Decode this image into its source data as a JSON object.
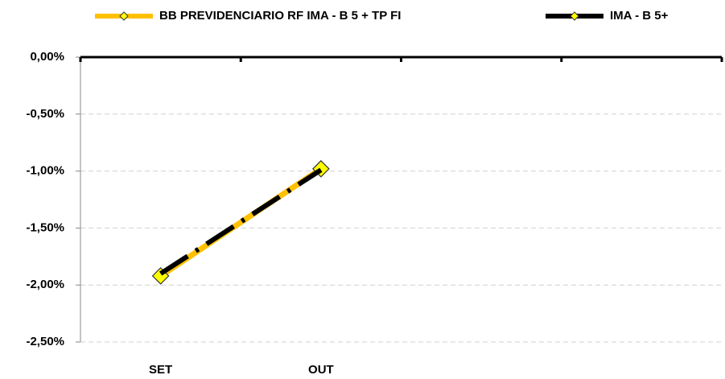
{
  "chart_data": {
    "type": "line",
    "categories": [
      "SET",
      "OUT",
      null,
      null
    ],
    "series": [
      {
        "name": "BB PREVIDENCIARIO RF IMA - B 5 + TP FI",
        "color": "#ffc000",
        "marker_fill": "#ffff00",
        "values": [
          -1.92,
          -0.98,
          null,
          null
        ]
      },
      {
        "name": "IMA - B 5+",
        "color": "#000000",
        "marker_fill": "#ffff00",
        "dashed": true,
        "values": [
          -1.9,
          -0.99,
          null,
          null
        ]
      }
    ],
    "ylim": [
      -2.5,
      0
    ],
    "yticks": [
      {
        "value": 0,
        "label": "0,00%"
      },
      {
        "value": -0.5,
        "label": "-0,50%"
      },
      {
        "value": -1,
        "label": "-1,00%"
      },
      {
        "value": -1.5,
        "label": "-1,50%"
      },
      {
        "value": -2,
        "label": "-2,00%"
      },
      {
        "value": -2.5,
        "label": "-2,50%"
      }
    ],
    "grid": true,
    "legend": "top"
  }
}
